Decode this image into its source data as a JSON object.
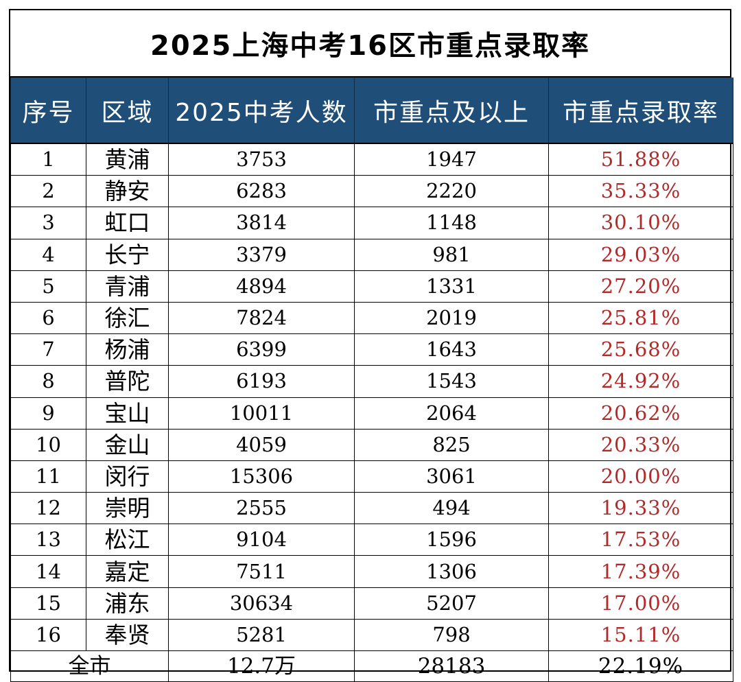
{
  "title": "2025上海中考16区市重点录取率",
  "headers": [
    "序号",
    "区域",
    "2025中考人数",
    "市重点及以上",
    "市重点录取率"
  ],
  "rows": [
    {
      "no": "1",
      "district": "黄浦",
      "students": "3753",
      "admitted": "1947",
      "rate": "51.88%"
    },
    {
      "no": "2",
      "district": "静安",
      "students": "6283",
      "admitted": "2220",
      "rate": "35.33%"
    },
    {
      "no": "3",
      "district": "虹口",
      "students": "3814",
      "admitted": "1148",
      "rate": "30.10%"
    },
    {
      "no": "4",
      "district": "长宁",
      "students": "3379",
      "admitted": "981",
      "rate": "29.03%"
    },
    {
      "no": "5",
      "district": "青浦",
      "students": "4894",
      "admitted": "1331",
      "rate": "27.20%"
    },
    {
      "no": "6",
      "district": "徐汇",
      "students": "7824",
      "admitted": "2019",
      "rate": "25.81%"
    },
    {
      "no": "7",
      "district": "杨浦",
      "students": "6399",
      "admitted": "1643",
      "rate": "25.68%"
    },
    {
      "no": "8",
      "district": "普陀",
      "students": "6193",
      "admitted": "1543",
      "rate": "24.92%"
    },
    {
      "no": "9",
      "district": "宝山",
      "students": "10011",
      "admitted": "2064",
      "rate": "20.62%"
    },
    {
      "no": "10",
      "district": "金山",
      "students": "4059",
      "admitted": "825",
      "rate": "20.33%"
    },
    {
      "no": "11",
      "district": "闵行",
      "students": "15306",
      "admitted": "3061",
      "rate": "20.00%"
    },
    {
      "no": "12",
      "district": "崇明",
      "students": "2555",
      "admitted": "494",
      "rate": "19.33%"
    },
    {
      "no": "13",
      "district": "松江",
      "students": "9104",
      "admitted": "1596",
      "rate": "17.53%"
    },
    {
      "no": "14",
      "district": "嘉定",
      "students": "7511",
      "admitted": "1306",
      "rate": "17.39%"
    },
    {
      "no": "15",
      "district": "浦东",
      "students": "30634",
      "admitted": "5207",
      "rate": "17.00%"
    },
    {
      "no": "16",
      "district": "奉贤",
      "students": "5281",
      "admitted": "798",
      "rate": "15.11%"
    }
  ],
  "total": {
    "label": "全市",
    "students": "12.7万",
    "admitted": "28183",
    "rate": "22.19%"
  },
  "colors": {
    "header_bg": "#1f4e79",
    "header_text": "#ffffff",
    "rate_text": "#b02a2a"
  }
}
